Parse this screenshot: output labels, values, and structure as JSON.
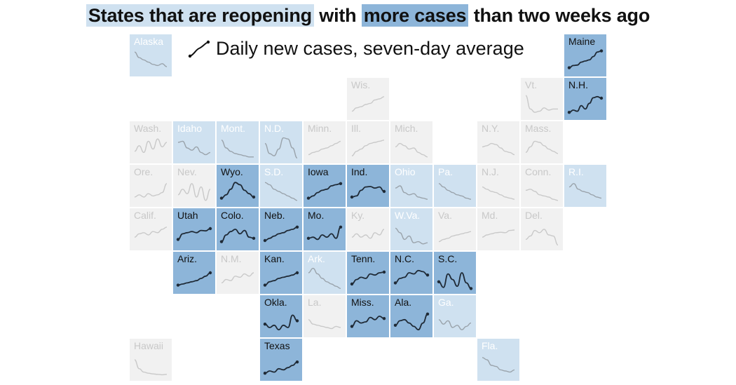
{
  "title": {
    "part1": "States that are reopening",
    "part2": "with",
    "part3": "more cases",
    "part4": "than two weeks ago"
  },
  "legend": {
    "label": "Daily new cases, seven-day average",
    "icon": "trend-line-icon"
  },
  "colors": {
    "more_cases": "#8db5d9",
    "reopening": "#cfe1f0",
    "not_reopening": "#f1f1f1",
    "line_dark": "#1f2a36",
    "line_light": "#9aa3ab"
  },
  "chart_data": {
    "type": "tile-grid-map",
    "title": "States that are reopening with more cases than two weeks ago",
    "series_label": "Daily new cases, seven-day average",
    "categories": [
      "more_cases",
      "reopening",
      "not_reopening"
    ],
    "states": [
      {
        "label": "Alaska",
        "status": "reopening",
        "col": 0,
        "row": 0,
        "trend": [
          0.9,
          0.65,
          0.55,
          0.45,
          0.35,
          0.3,
          0.38,
          0.25
        ]
      },
      {
        "label": "Maine",
        "status": "more_cases",
        "col": 10,
        "row": 0,
        "trend": [
          0.2,
          0.3,
          0.32,
          0.45,
          0.5,
          0.55,
          0.7,
          0.9,
          0.95
        ]
      },
      {
        "label": "Wis.",
        "status": "not_reopening",
        "col": 5,
        "row": 1,
        "trend": [
          0.2,
          0.35,
          0.4,
          0.5,
          0.55,
          0.7,
          0.75,
          0.85
        ]
      },
      {
        "label": "Vt.",
        "status": "not_reopening",
        "col": 9,
        "row": 1,
        "trend": [
          0.9,
          0.3,
          0.15,
          0.2,
          0.35,
          0.25,
          0.3,
          0.3
        ]
      },
      {
        "label": "N.H.",
        "status": "more_cases",
        "col": 10,
        "row": 1,
        "trend": [
          0.15,
          0.25,
          0.2,
          0.45,
          0.3,
          0.55,
          0.8,
          0.85,
          0.78
        ]
      },
      {
        "label": "Wash.",
        "status": "not_reopening",
        "col": 0,
        "row": 2,
        "trend": [
          0.35,
          0.6,
          0.3,
          0.8,
          0.45,
          0.9,
          0.55,
          0.75
        ]
      },
      {
        "label": "Idaho",
        "status": "reopening",
        "col": 1,
        "row": 2,
        "trend": [
          0.75,
          0.8,
          0.5,
          0.4,
          0.55,
          0.3,
          0.2,
          0.3
        ]
      },
      {
        "label": "Mont.",
        "status": "reopening",
        "col": 2,
        "row": 2,
        "trend": [
          0.85,
          0.5,
          0.35,
          0.25,
          0.2,
          0.15,
          0.1,
          0.1
        ]
      },
      {
        "label": "N.D.",
        "status": "reopening",
        "col": 3,
        "row": 2,
        "trend": [
          0.7,
          0.25,
          0.15,
          0.45,
          0.95,
          0.9,
          0.5,
          0.05
        ]
      },
      {
        "label": "Minn.",
        "status": "not_reopening",
        "col": 4,
        "row": 2,
        "trend": [
          0.2,
          0.3,
          0.35,
          0.45,
          0.5,
          0.6,
          0.7,
          0.8
        ]
      },
      {
        "label": "Ill.",
        "status": "not_reopening",
        "col": 5,
        "row": 2,
        "trend": [
          0.15,
          0.35,
          0.45,
          0.6,
          0.7,
          0.75,
          0.8,
          0.85
        ]
      },
      {
        "label": "Mich.",
        "status": "not_reopening",
        "col": 6,
        "row": 2,
        "trend": [
          0.55,
          0.7,
          0.6,
          0.45,
          0.5,
          0.3,
          0.2,
          0.1
        ]
      },
      {
        "label": "N.Y.",
        "status": "not_reopening",
        "col": 8,
        "row": 2,
        "trend": [
          0.55,
          0.6,
          0.7,
          0.65,
          0.5,
          0.35,
          0.3,
          0.2
        ]
      },
      {
        "label": "Mass.",
        "status": "not_reopening",
        "col": 9,
        "row": 2,
        "trend": [
          0.3,
          0.55,
          0.8,
          0.75,
          0.6,
          0.45,
          0.35,
          0.25
        ]
      },
      {
        "label": "Ore.",
        "status": "not_reopening",
        "col": 0,
        "row": 3,
        "trend": [
          0.25,
          0.35,
          0.25,
          0.4,
          0.3,
          0.35,
          0.45,
          0.85
        ]
      },
      {
        "label": "Nev.",
        "status": "not_reopening",
        "col": 1,
        "row": 3,
        "trend": [
          0.35,
          0.6,
          0.4,
          0.85,
          0.25,
          0.7,
          0.1,
          0.6
        ]
      },
      {
        "label": "Wyo.",
        "status": "more_cases",
        "col": 2,
        "row": 3,
        "trend": [
          0.2,
          0.35,
          0.6,
          0.9,
          0.8,
          0.55,
          0.4,
          0.25
        ]
      },
      {
        "label": "S.D.",
        "status": "reopening",
        "col": 3,
        "row": 3,
        "trend": [
          0.9,
          0.8,
          0.6,
          0.5,
          0.4,
          0.3,
          0.2,
          0.1
        ]
      },
      {
        "label": "Iowa",
        "status": "more_cases",
        "col": 4,
        "row": 3,
        "trend": [
          0.2,
          0.3,
          0.45,
          0.55,
          0.6,
          0.75,
          0.8,
          0.85
        ]
      },
      {
        "label": "Ind.",
        "status": "more_cases",
        "col": 5,
        "row": 3,
        "trend": [
          0.25,
          0.3,
          0.55,
          0.7,
          0.72,
          0.65,
          0.7,
          0.5
        ]
      },
      {
        "label": "Ohio",
        "status": "reopening",
        "col": 6,
        "row": 3,
        "trend": [
          0.65,
          0.75,
          0.45,
          0.35,
          0.4,
          0.25,
          0.2,
          0.15
        ]
      },
      {
        "label": "Pa.",
        "status": "reopening",
        "col": 7,
        "row": 3,
        "trend": [
          0.85,
          0.7,
          0.55,
          0.45,
          0.35,
          0.3,
          0.2,
          0.15
        ]
      },
      {
        "label": "N.J.",
        "status": "not_reopening",
        "col": 8,
        "row": 3,
        "trend": [
          0.7,
          0.6,
          0.5,
          0.45,
          0.35,
          0.25,
          0.2,
          0.15
        ]
      },
      {
        "label": "Conn.",
        "status": "not_reopening",
        "col": 9,
        "row": 3,
        "trend": [
          0.55,
          0.6,
          0.5,
          0.35,
          0.3,
          0.25,
          0.15,
          0.1
        ]
      },
      {
        "label": "R.I.",
        "status": "reopening",
        "col": 10,
        "row": 3,
        "trend": [
          0.7,
          0.85,
          0.6,
          0.5,
          0.45,
          0.35,
          0.25,
          0.2
        ]
      },
      {
        "label": "Calif.",
        "status": "not_reopening",
        "col": 0,
        "row": 4,
        "trend": [
          0.4,
          0.55,
          0.6,
          0.5,
          0.65,
          0.6,
          0.75,
          0.85
        ]
      },
      {
        "label": "Utah",
        "status": "more_cases",
        "col": 1,
        "row": 4,
        "trend": [
          0.3,
          0.55,
          0.6,
          0.65,
          0.6,
          0.7,
          0.68,
          0.78
        ]
      },
      {
        "label": "Colo.",
        "status": "more_cases",
        "col": 2,
        "row": 4,
        "trend": [
          0.2,
          0.5,
          0.65,
          0.75,
          0.55,
          0.7,
          0.4,
          0.35
        ]
      },
      {
        "label": "Neb.",
        "status": "more_cases",
        "col": 3,
        "row": 4,
        "trend": [
          0.25,
          0.35,
          0.45,
          0.55,
          0.6,
          0.7,
          0.75,
          0.85
        ]
      },
      {
        "label": "Mo.",
        "status": "more_cases",
        "col": 4,
        "row": 4,
        "trend": [
          0.35,
          0.4,
          0.3,
          0.5,
          0.4,
          0.55,
          0.35,
          0.85
        ]
      },
      {
        "label": "Ky.",
        "status": "not_reopening",
        "col": 5,
        "row": 4,
        "trend": [
          0.4,
          0.55,
          0.4,
          0.5,
          0.35,
          0.6,
          0.5,
          0.75
        ]
      },
      {
        "label": "W.Va.",
        "status": "reopening",
        "col": 6,
        "row": 4,
        "trend": [
          0.8,
          0.6,
          0.3,
          0.45,
          0.15,
          0.2,
          0.1,
          0.15
        ]
      },
      {
        "label": "Va.",
        "status": "not_reopening",
        "col": 7,
        "row": 4,
        "trend": [
          0.2,
          0.3,
          0.35,
          0.45,
          0.5,
          0.55,
          0.6,
          0.65
        ]
      },
      {
        "label": "Md.",
        "status": "not_reopening",
        "col": 8,
        "row": 4,
        "trend": [
          0.4,
          0.5,
          0.55,
          0.6,
          0.62,
          0.6,
          0.7,
          0.72
        ]
      },
      {
        "label": "Del.",
        "status": "not_reopening",
        "col": 9,
        "row": 4,
        "trend": [
          0.3,
          0.45,
          0.7,
          0.6,
          0.75,
          0.5,
          0.45,
          0.05
        ]
      },
      {
        "label": "Ariz.",
        "status": "more_cases",
        "col": 1,
        "row": 5,
        "trend": [
          0.2,
          0.25,
          0.3,
          0.35,
          0.4,
          0.5,
          0.6,
          0.75
        ]
      },
      {
        "label": "N.M.",
        "status": "not_reopening",
        "col": 2,
        "row": 5,
        "trend": [
          0.3,
          0.45,
          0.4,
          0.6,
          0.55,
          0.7,
          0.6,
          0.75
        ]
      },
      {
        "label": "Kan.",
        "status": "more_cases",
        "col": 3,
        "row": 5,
        "trend": [
          0.2,
          0.35,
          0.4,
          0.5,
          0.55,
          0.6,
          0.65,
          0.75
        ]
      },
      {
        "label": "Ark.",
        "status": "reopening",
        "col": 4,
        "row": 5,
        "trend": [
          0.75,
          0.95,
          0.7,
          0.5,
          0.35,
          0.25,
          0.15,
          0.05
        ]
      },
      {
        "label": "Tenn.",
        "status": "more_cases",
        "col": 5,
        "row": 5,
        "trend": [
          0.25,
          0.45,
          0.55,
          0.5,
          0.7,
          0.65,
          0.75,
          0.78
        ]
      },
      {
        "label": "N.C.",
        "status": "more_cases",
        "col": 6,
        "row": 5,
        "trend": [
          0.3,
          0.5,
          0.55,
          0.75,
          0.7,
          0.85,
          0.8,
          0.65
        ]
      },
      {
        "label": "S.C.",
        "status": "more_cases",
        "col": 7,
        "row": 5,
        "trend": [
          0.35,
          0.1,
          0.7,
          0.45,
          0.15,
          0.75,
          0.3,
          0.05
        ]
      },
      {
        "label": "Okla.",
        "status": "more_cases",
        "col": 3,
        "row": 6,
        "trend": [
          0.4,
          0.25,
          0.35,
          0.15,
          0.35,
          0.25,
          0.8,
          0.55
        ]
      },
      {
        "label": "La.",
        "status": "not_reopening",
        "col": 4,
        "row": 6,
        "trend": [
          0.6,
          0.4,
          0.35,
          0.3,
          0.25,
          0.2,
          0.3,
          0.25
        ]
      },
      {
        "label": "Miss.",
        "status": "more_cases",
        "col": 5,
        "row": 6,
        "trend": [
          0.3,
          0.55,
          0.45,
          0.5,
          0.7,
          0.6,
          0.75,
          0.65
        ]
      },
      {
        "label": "Ala.",
        "status": "more_cases",
        "col": 6,
        "row": 6,
        "trend": [
          0.35,
          0.55,
          0.6,
          0.45,
          0.3,
          0.15,
          0.45,
          0.85
        ]
      },
      {
        "label": "Ga.",
        "status": "reopening",
        "col": 7,
        "row": 6,
        "trend": [
          0.6,
          0.4,
          0.55,
          0.25,
          0.35,
          0.15,
          0.3,
          0.45
        ]
      },
      {
        "label": "Hawaii",
        "status": "not_reopening",
        "col": 0,
        "row": 7,
        "trend": [
          0.75,
          0.35,
          0.2,
          0.15,
          0.12,
          0.1,
          0.08,
          0.1
        ]
      },
      {
        "label": "Texas",
        "status": "more_cases",
        "col": 3,
        "row": 7,
        "trend": [
          0.15,
          0.25,
          0.2,
          0.35,
          0.3,
          0.4,
          0.5,
          0.65
        ]
      },
      {
        "label": "Fla.",
        "status": "reopening",
        "col": 8,
        "row": 7,
        "trend": [
          0.85,
          0.75,
          0.5,
          0.45,
          0.3,
          0.25,
          0.2,
          0.3
        ]
      }
    ]
  }
}
